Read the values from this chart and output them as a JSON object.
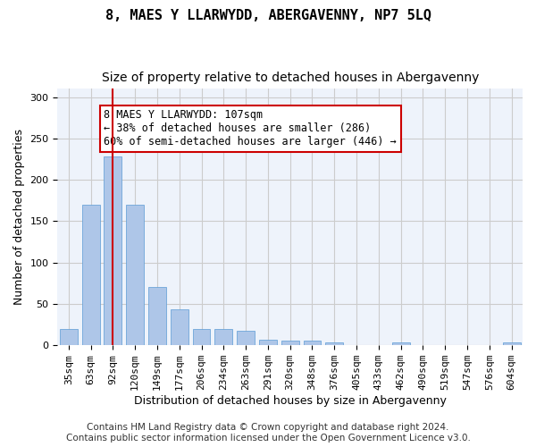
{
  "title": "8, MAES Y LLARWYDD, ABERGAVENNY, NP7 5LQ",
  "subtitle": "Size of property relative to detached houses in Abergavenny",
  "xlabel": "Distribution of detached houses by size in Abergavenny",
  "ylabel": "Number of detached properties",
  "bar_color": "#aec6e8",
  "bar_edge_color": "#5b9bd5",
  "grid_color": "#cccccc",
  "vline_color": "#cc0000",
  "vline_x": 2,
  "annotation_text": "8 MAES Y LLARWYDD: 107sqm\n← 38% of detached houses are smaller (286)\n60% of semi-detached houses are larger (446) →",
  "annotation_box_color": "#ffffff",
  "annotation_box_edgecolor": "#cc0000",
  "categories": [
    "35sqm",
    "63sqm",
    "92sqm",
    "120sqm",
    "149sqm",
    "177sqm",
    "206sqm",
    "234sqm",
    "263sqm",
    "291sqm",
    "320sqm",
    "348sqm",
    "376sqm",
    "405sqm",
    "433sqm",
    "462sqm",
    "490sqm",
    "519sqm",
    "547sqm",
    "576sqm",
    "604sqm"
  ],
  "values": [
    20,
    170,
    228,
    170,
    70,
    43,
    20,
    20,
    17,
    7,
    6,
    6,
    3,
    0,
    0,
    4,
    0,
    0,
    0,
    0,
    3
  ],
  "ylim": [
    0,
    310
  ],
  "yticks": [
    0,
    50,
    100,
    150,
    200,
    250,
    300
  ],
  "footer": "Contains HM Land Registry data © Crown copyright and database right 2024.\nContains public sector information licensed under the Open Government Licence v3.0.",
  "title_fontsize": 11,
  "subtitle_fontsize": 10,
  "annotation_fontsize": 8.5,
  "footer_fontsize": 7.5,
  "axis_label_fontsize": 9,
  "tick_fontsize": 8
}
